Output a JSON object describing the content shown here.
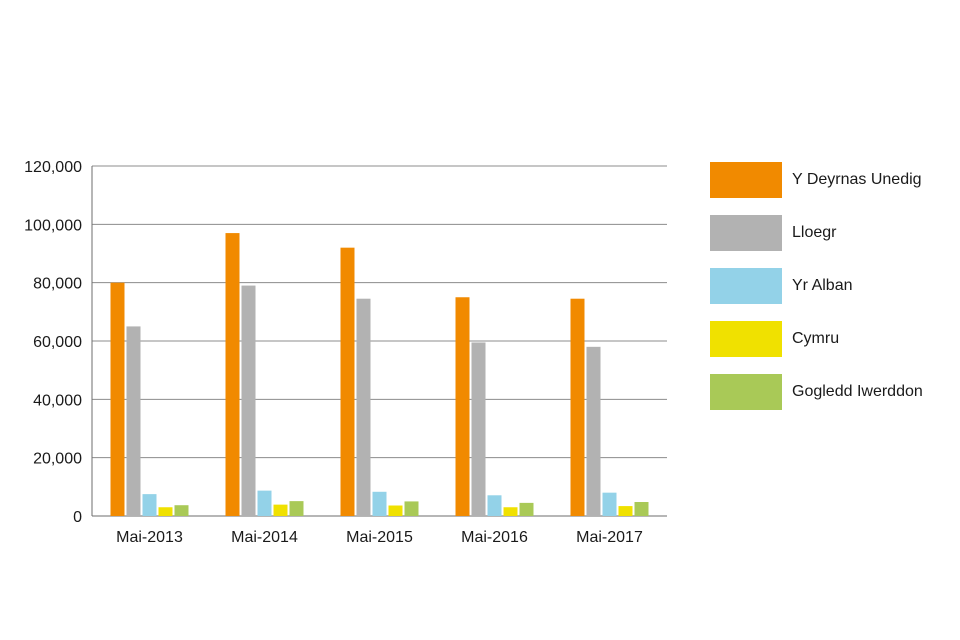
{
  "chart_data": {
    "type": "bar",
    "categories": [
      "Mai-2013",
      "Mai-2014",
      "Mai-2015",
      "Mai-2016",
      "Mai-2017"
    ],
    "series": [
      {
        "name": "Y Deyrnas Unedig",
        "color": "#f18a00",
        "values": [
          80000,
          97000,
          92000,
          75000,
          74500
        ]
      },
      {
        "name": "Lloegr",
        "color": "#b2b2b2",
        "values": [
          65000,
          79000,
          74500,
          59500,
          58000
        ]
      },
      {
        "name": "Yr Alban",
        "color": "#93d2e8",
        "values": [
          7500,
          8700,
          8300,
          7100,
          8000
        ]
      },
      {
        "name": "Cymru",
        "color": "#f0e100",
        "values": [
          3000,
          3900,
          3600,
          3000,
          3400
        ]
      },
      {
        "name": "Gogledd Iwerddon",
        "color": "#a9c957",
        "values": [
          3700,
          5100,
          5000,
          4500,
          4800
        ]
      }
    ],
    "yticks": [
      "0",
      "20,000",
      "40,000",
      "60,000",
      "80,000",
      "100,000",
      "120,000"
    ],
    "ylim": [
      0,
      120000
    ],
    "ytick_step": 20000,
    "grid": true,
    "legend_position": "right",
    "title": "",
    "xlabel": "",
    "ylabel": ""
  }
}
